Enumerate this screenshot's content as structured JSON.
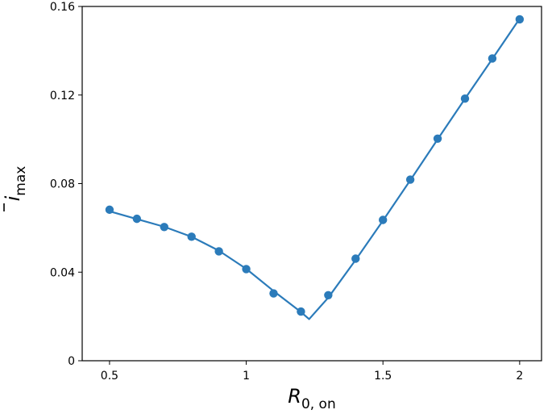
{
  "chart_data": {
    "type": "line",
    "title": "",
    "xlabel": "R",
    "xlabel_subscript": "0, on",
    "ylabel": "i",
    "ylabel_subscript": "max",
    "xlim": [
      0.4,
      2.08
    ],
    "ylim": [
      0,
      0.16
    ],
    "x_ticks": [
      0.5,
      1,
      1.5,
      2
    ],
    "x_tick_labels": [
      "0.5",
      "1",
      "1.5",
      "2"
    ],
    "y_ticks": [
      0,
      0.04,
      0.08,
      0.12,
      0.16
    ],
    "y_tick_labels": [
      "0",
      "0.04",
      "0.08",
      "0.12",
      "0.16"
    ],
    "grid": false,
    "color": "#2b7bba",
    "series": [
      {
        "kind": "line",
        "x": [
          0.5,
          0.6,
          0.7,
          0.8,
          0.9,
          1.0,
          1.1,
          1.2,
          1.23,
          1.3,
          1.4,
          1.5,
          1.6,
          1.7,
          1.8,
          1.9,
          2.0
        ],
        "y": [
          0.0675,
          0.064,
          0.0605,
          0.056,
          0.0497,
          0.0415,
          0.0315,
          0.022,
          0.0188,
          0.0285,
          0.0455,
          0.0633,
          0.0815,
          0.1,
          0.1183,
          0.1363,
          0.1545
        ]
      },
      {
        "kind": "scatter",
        "x": [
          0.5,
          0.6,
          0.7,
          0.8,
          0.9,
          1.0,
          1.1,
          1.2,
          1.3,
          1.4,
          1.5,
          1.6,
          1.7,
          1.8,
          1.9,
          2.0
        ],
        "y": [
          0.0682,
          0.0641,
          0.0604,
          0.056,
          0.0494,
          0.0414,
          0.0304,
          0.0222,
          0.0296,
          0.0461,
          0.0636,
          0.0818,
          0.1003,
          0.1184,
          0.1365,
          0.1542
        ]
      }
    ]
  }
}
